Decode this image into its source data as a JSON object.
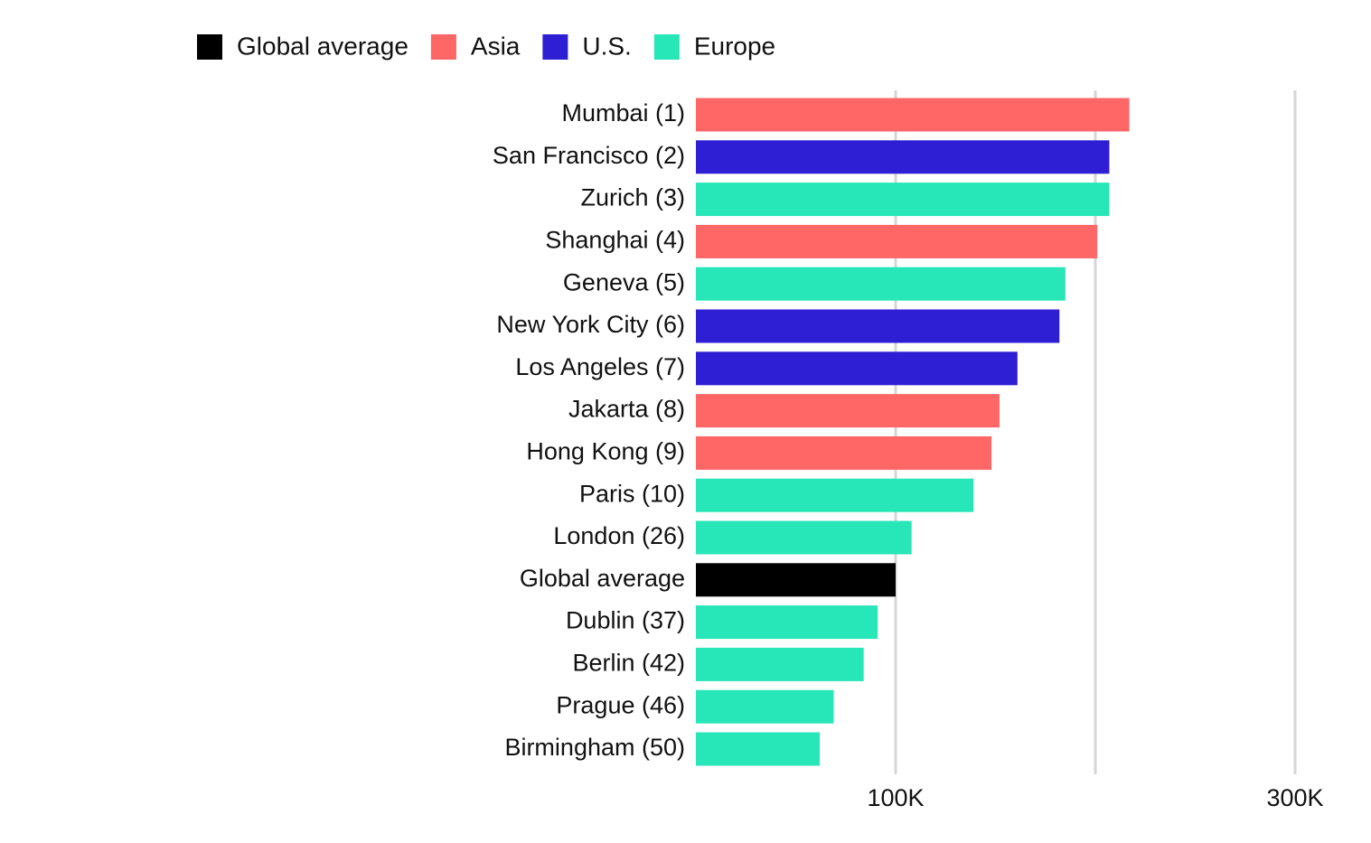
{
  "chart_data": {
    "type": "bar",
    "orientation": "horizontal",
    "categories": [
      "Mumbai (1)",
      "San Francisco (2)",
      "Zurich (3)",
      "Shanghai (4)",
      "Geneva (5)",
      "New York City (6)",
      "Los Angeles (7)",
      "Jakarta (8)",
      "Hong Kong (9)",
      "Paris (10)",
      "London (26)",
      "Global average",
      "Dublin (37)",
      "Berlin (42)",
      "Prague (46)",
      "Birmingham (50)"
    ],
    "series": [
      {
        "name": "Global average",
        "color": "#000000",
        "values": [
          null,
          null,
          null,
          null,
          null,
          null,
          null,
          null,
          null,
          null,
          null,
          100000,
          null,
          null,
          null,
          null
        ]
      },
      {
        "name": "Asia",
        "color": "#ff6666",
        "values": [
          217000,
          null,
          null,
          201000,
          null,
          null,
          null,
          152000,
          148000,
          null,
          null,
          null,
          null,
          null,
          null,
          null
        ]
      },
      {
        "name": "U.S.",
        "color": "#2e1fd4",
        "values": [
          null,
          207000,
          null,
          null,
          null,
          182000,
          161000,
          null,
          null,
          null,
          null,
          null,
          null,
          null,
          null,
          null
        ]
      },
      {
        "name": "Europe",
        "color": "#27e6b7",
        "values": [
          null,
          null,
          207000,
          null,
          185000,
          null,
          null,
          null,
          null,
          139000,
          108000,
          null,
          91000,
          84000,
          69000,
          62000
        ]
      }
    ],
    "xlim": [
      0,
      300000
    ],
    "xticks": [
      {
        "value": 100000,
        "label": "100K"
      },
      {
        "value": 200000,
        "label": null
      },
      {
        "value": 300000,
        "label": "300K"
      }
    ],
    "grid": true,
    "legend": "top"
  }
}
